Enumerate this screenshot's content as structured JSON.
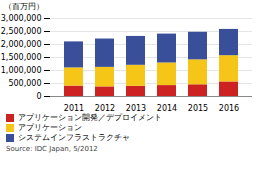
{
  "chart_data": {
    "type": "bar",
    "stacked": true,
    "ylabel": "（百万円）",
    "categories": [
      "2011",
      "2012",
      "2013",
      "2014",
      "2015",
      "2016"
    ],
    "series": [
      {
        "name": "アプリケーション開発／デプロイメント",
        "color": "#cc2222",
        "values": [
          400000,
          370000,
          390000,
          420000,
          450000,
          560000
        ]
      },
      {
        "name": "アプリケーション",
        "color": "#f5c518",
        "values": [
          700000,
          750000,
          810000,
          870000,
          960000,
          1010000
        ]
      },
      {
        "name": "システムインフラストラクチャ",
        "color": "#3a4f9a",
        "values": [
          1000000,
          1090000,
          1110000,
          1110000,
          1060000,
          1010000
        ]
      }
    ],
    "ylim": [
      0,
      3000000
    ],
    "yticks": [
      0,
      {
        "value": 500000,
        "label": "500,000"
      },
      {
        "value": 1000000,
        "label": "1,000,000"
      },
      {
        "value": 1500000,
        "label": "1,500,000"
      },
      {
        "value": 2000000,
        "label": "2,000,000"
      },
      {
        "value": 2500000,
        "label": "2,500,000"
      },
      {
        "value": 3000000,
        "label": "3,000,000"
      }
    ],
    "grid": true,
    "legend": "bottom",
    "annotations": [
      "Source: IDC Japan, 5/2012"
    ]
  }
}
